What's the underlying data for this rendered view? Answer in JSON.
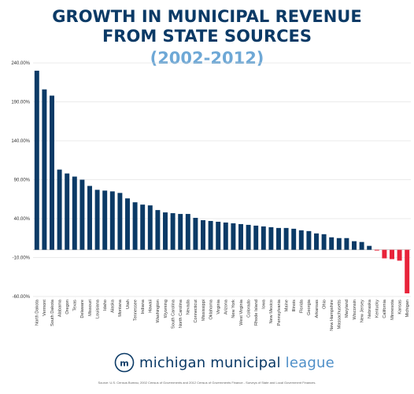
{
  "header": {
    "title_line1": "GROWTH IN MUNICIPAL REVENUE",
    "title_line2": "FROM STATE SOURCES",
    "subtitle": "(2002-2012)"
  },
  "logo": {
    "word1": "michigan municipal",
    "word2": "league",
    "icon": "mml-logo-icon"
  },
  "source": "Source: U.S. Census Bureau, 2002 Census of Governments and 2012 Census of Governments Finance - Surveys of State and Local Government Finances.",
  "colors": {
    "positive": "#0b3a66",
    "negative": "#e8233a",
    "grid": "#d8d8d8",
    "title": "#0b3a66",
    "subtitle": "#6ea8d6"
  },
  "chart_data": {
    "type": "bar",
    "ylim": [
      -60,
      240
    ],
    "yticks": [
      -60,
      -10,
      40,
      90,
      140,
      190,
      240
    ],
    "ytick_labels": [
      "-60.00%",
      "-10.00%",
      "40.00%",
      "90.00%",
      "140.00%",
      "190.00%",
      "240.00%"
    ],
    "grid": true,
    "categories": [
      "North Dakota",
      "Vermont",
      "South Dakota",
      "Alabama",
      "Oregon",
      "Texas",
      "Delaware",
      "Missouri",
      "Louisiana",
      "Idaho",
      "Alaska",
      "Montana",
      "Utah",
      "Tennessee",
      "Indiana",
      "Hawaii",
      "Washington",
      "Wyoming",
      "South Carolina",
      "North Carolina",
      "Nevada",
      "Connecticut",
      "Mississippi",
      "Oklahoma",
      "Virginia",
      "Arizona",
      "New York",
      "West Virginia",
      "Colorado",
      "Rhode Island",
      "Iowa",
      "New Mexico",
      "Pennsylvania",
      "Maine",
      "Illinois",
      "Florida",
      "Georgia",
      "Arkansas",
      "Ohio",
      "New Hampshire",
      "Massachusetts",
      "Maryland",
      "Wisconsin",
      "New Jersey",
      "Nebraska",
      "Kentucky",
      "California",
      "Minnesota",
      "Kansas",
      "Michigan"
    ],
    "values": [
      230,
      206,
      198,
      103,
      98,
      94,
      90,
      82,
      77,
      76,
      75,
      73,
      66,
      61,
      58,
      57,
      51,
      48,
      47,
      46,
      46,
      41,
      38,
      37,
      36,
      35,
      34,
      33,
      32,
      31,
      30,
      29,
      28,
      28,
      27,
      25,
      24,
      21,
      20,
      16,
      15,
      15,
      11,
      10,
      5,
      -1,
      -11,
      -12,
      -14,
      -56
    ]
  }
}
